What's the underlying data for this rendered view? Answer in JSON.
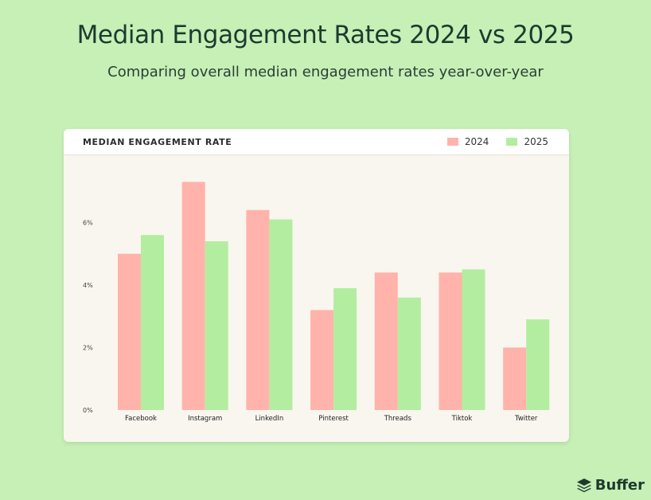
{
  "header": {
    "title": "Median Engagement Rates 2024 vs 2025",
    "subtitle": "Comparing overall median engagement rates year-over-year"
  },
  "card": {
    "label": "MEDIAN ENGAGEMENT RATE"
  },
  "brand": {
    "name": "Buffer",
    "icon": "buffer-stack-icon"
  },
  "colors": {
    "background": "#c6f0b6",
    "series_2024": "#ffb3aa",
    "series_2025": "#b3eda0"
  },
  "chart_data": {
    "type": "bar",
    "title": "MEDIAN ENGAGEMENT RATE",
    "categories": [
      "Facebook",
      "Instagram",
      "LinkedIn",
      "Pinterest",
      "Threads",
      "Tiktok",
      "Twitter"
    ],
    "series": [
      {
        "name": "2024",
        "values": [
          5.0,
          7.3,
          6.4,
          3.2,
          4.4,
          4.4,
          2.0
        ]
      },
      {
        "name": "2025",
        "values": [
          5.6,
          5.4,
          6.1,
          3.9,
          3.6,
          4.5,
          2.9
        ]
      }
    ],
    "yticks": [
      "0%",
      "2%",
      "4%",
      "6%"
    ],
    "ytick_values": [
      0,
      2,
      4,
      6
    ],
    "ylim": [
      0,
      8
    ],
    "legend": "top-right",
    "grid": false
  }
}
